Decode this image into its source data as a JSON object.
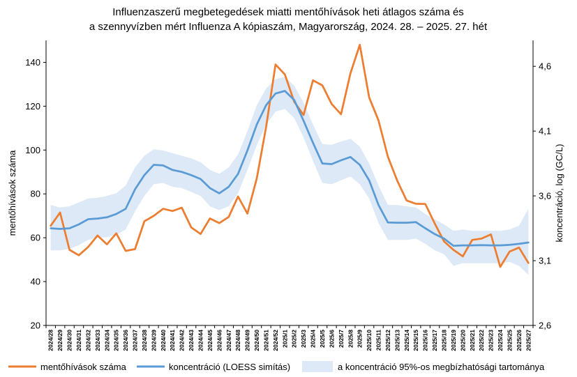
{
  "chart_data": {
    "type": "line",
    "title_lines": [
      "Influenzaszerű megbetegedések miatti mentőhívások heti átlagos száma és",
      "a szennyvízben mért Influenza A kópiaszám, Magyarország, 2024. 28. – 2025. 27. hét"
    ],
    "ylabel_left": "mentőhívások száma",
    "ylabel_right": "koncentráció, log (GC/L)",
    "ylim_left": [
      20,
      150
    ],
    "yticks_left": [
      "20",
      "40",
      "60",
      "80",
      "100",
      "120",
      "140"
    ],
    "yticks_left_values": [
      20,
      40,
      60,
      80,
      100,
      120,
      140
    ],
    "ylim_right": [
      2.6,
      4.8
    ],
    "yticks_right": [
      "2,6",
      "3,1",
      "3,6",
      "4,1",
      "4,6"
    ],
    "yticks_right_values": [
      2.6,
      3.1,
      3.6,
      4.1,
      4.6
    ],
    "categories": [
      "2024/28",
      "2024/29",
      "2024/30",
      "2024/31",
      "2024/32",
      "2024/33",
      "2024/34",
      "2024/35",
      "2024/36",
      "2024/37",
      "2024/38",
      "2024/39",
      "2024/40",
      "2024/41",
      "2024/42",
      "2024/43",
      "2024/44",
      "2024/45",
      "2024/46",
      "2024/47",
      "2024/48",
      "2024/49",
      "2024/50",
      "2024/51",
      "2024/52",
      "2025/1",
      "2025/2",
      "2025/3",
      "2025/4",
      "2025/5",
      "2025/6",
      "2025/7",
      "2025/8",
      "2025/9",
      "2025/10",
      "2025/11",
      "2025/12",
      "2025/13",
      "2025/14",
      "2025/15",
      "2025/16",
      "2025/17",
      "2025/18",
      "2025/19",
      "2025/20",
      "2025/21",
      "2025/22",
      "2025/23",
      "2025/24",
      "2025/25",
      "2025/26",
      "2025/27"
    ],
    "series": [
      {
        "name": "mentőhívások száma",
        "axis": "left",
        "color": "#ed7d31",
        "values": [
          65.5,
          71.5,
          54.5,
          52,
          55.8,
          61,
          57,
          62,
          54,
          54.8,
          67.5,
          70,
          73.2,
          72.2,
          73.7,
          64.7,
          61.7,
          68.8,
          66.7,
          69.5,
          78.8,
          71,
          87,
          110.5,
          139,
          134.5,
          122,
          116,
          131.8,
          129.5,
          121,
          116.3,
          135,
          148,
          124,
          113.5,
          97,
          86,
          77,
          75.5,
          75.4,
          66.5,
          58.3,
          54.5,
          51.5,
          59,
          59.6,
          61.5,
          46.7,
          53.7,
          55.5,
          48.5
        ]
      },
      {
        "name": "koncentráció (LOESS simítás)",
        "axis": "right",
        "color": "#5b9bd5",
        "values": [
          3.35,
          3.345,
          3.35,
          3.38,
          3.42,
          3.425,
          3.435,
          3.46,
          3.5,
          3.65,
          3.76,
          3.84,
          3.835,
          3.8,
          3.785,
          3.76,
          3.73,
          3.66,
          3.62,
          3.67,
          3.77,
          3.95,
          4.15,
          4.3,
          4.39,
          4.41,
          4.34,
          4.18,
          4.01,
          3.85,
          3.845,
          3.875,
          3.9,
          3.84,
          3.72,
          3.53,
          3.395,
          3.393,
          3.393,
          3.397,
          3.35,
          3.305,
          3.27,
          3.215,
          3.218,
          3.218,
          3.22,
          3.218,
          3.218,
          3.222,
          3.23,
          3.24
        ]
      }
    ],
    "band": {
      "name": "a konfidencia 95%-os megbízhatósági tartománya",
      "axis": "right",
      "color": "#dde9f7",
      "upper": [
        3.53,
        3.51,
        3.52,
        3.55,
        3.58,
        3.585,
        3.6,
        3.62,
        3.68,
        3.82,
        3.91,
        3.96,
        3.95,
        3.93,
        3.91,
        3.89,
        3.86,
        3.8,
        3.77,
        3.82,
        3.92,
        4.1,
        4.3,
        4.43,
        4.5,
        4.52,
        4.45,
        4.32,
        4.15,
        4.0,
        3.995,
        4.02,
        4.04,
        3.98,
        3.85,
        3.68,
        3.53,
        3.53,
        3.52,
        3.51,
        3.46,
        3.42,
        3.38,
        3.33,
        3.34,
        3.33,
        3.33,
        3.33,
        3.33,
        3.34,
        3.37,
        3.5
      ],
      "lower": [
        3.18,
        3.18,
        3.19,
        3.22,
        3.26,
        3.28,
        3.28,
        3.3,
        3.34,
        3.48,
        3.6,
        3.69,
        3.7,
        3.67,
        3.66,
        3.63,
        3.6,
        3.52,
        3.49,
        3.52,
        3.62,
        3.8,
        3.99,
        4.15,
        4.25,
        4.27,
        4.2,
        4.05,
        3.87,
        3.7,
        3.69,
        3.72,
        3.75,
        3.69,
        3.58,
        3.39,
        3.26,
        3.26,
        3.26,
        3.27,
        3.23,
        3.18,
        3.15,
        3.06,
        3.08,
        3.08,
        3.08,
        3.08,
        3.08,
        3.09,
        3.06,
        2.99
      ]
    },
    "legend": {
      "placement": "bottom",
      "items": [
        {
          "label": "mentőhívások száma",
          "kind": "line",
          "color": "#ed7d31"
        },
        {
          "label": "koncentráció (LOESS simítás)",
          "kind": "line",
          "color": "#5b9bd5"
        },
        {
          "label": "a koncentráció 95%-os megbízhatósági tartománya",
          "kind": "band",
          "color": "#dde9f7"
        }
      ]
    },
    "grid": false
  }
}
